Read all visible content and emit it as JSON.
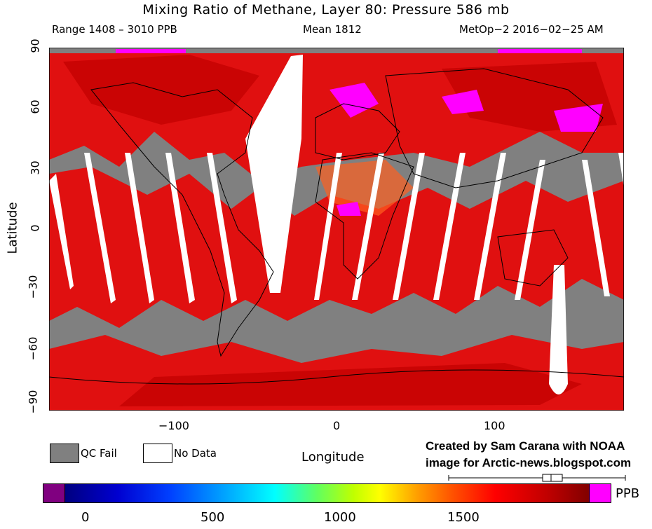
{
  "header": {
    "title": "Mixing Ratio of Methane, Layer 80: Pressure 586 mb",
    "range": "Range 1408 – 3010 PPB",
    "mean": "Mean 1812",
    "source": "MetOp−2 2016−02−25 AM"
  },
  "axes": {
    "ylabel": "Latitude",
    "xlabel": "Longitude",
    "yticks": [
      "90",
      "60",
      "30",
      "0",
      "−30",
      "−60",
      "−90"
    ],
    "xticks": [
      "−100",
      "0",
      "100"
    ]
  },
  "legend": {
    "qc_fail": "QC Fail",
    "no_data": "No Data",
    "qc_fail_color": "#808080",
    "no_data_color": "#ffffff"
  },
  "credit": {
    "line1": "Created by Sam Carana with NOAA",
    "line2": "image for Arctic-news.blogspot.com"
  },
  "colorbar": {
    "unit": "PPB",
    "ticks": [
      "0",
      "500",
      "1000",
      "1500"
    ],
    "low_color": "#800080",
    "high_color": "#ff00ff"
  },
  "colors": {
    "ocean_fail": "#808080",
    "methane_main": "#e01010",
    "methane_high": "#ff00ff"
  }
}
